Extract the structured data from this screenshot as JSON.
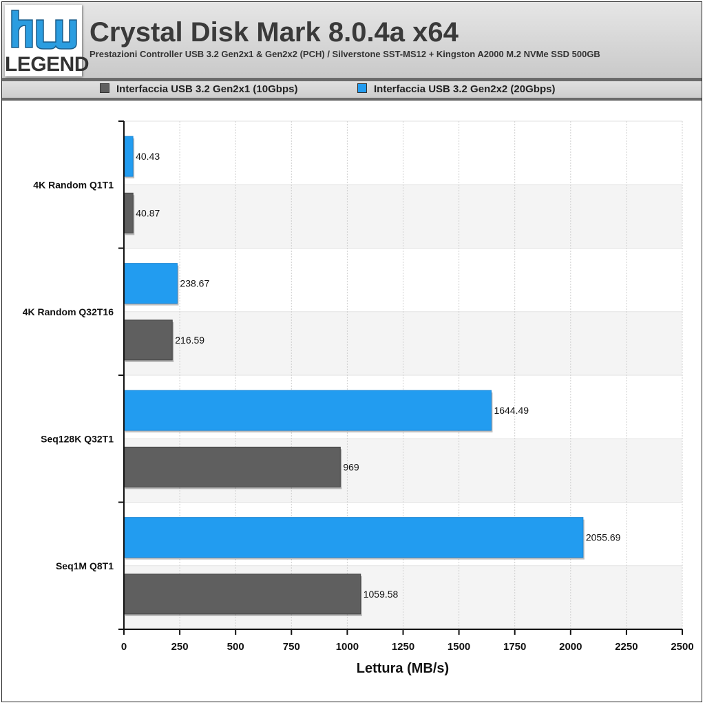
{
  "logo": {
    "text": "LEGEND"
  },
  "header": {
    "title": "Crystal Disk Mark 8.0.4a x64",
    "subtitle": "Prestazioni Controller USB 3.2 Gen2x1 & Gen2x2 (PCH) / Silverstone SST-MS12 + Kingston A2000 M.2 NVMe SSD 500GB"
  },
  "legend": {
    "items": [
      {
        "label": "Interfaccia USB 3.2 Gen2x1 (10Gbps)",
        "color": "#5f5f5f"
      },
      {
        "label": "Interfaccia USB 3.2 Gen2x2 (20Gbps)",
        "color": "#229cf0"
      }
    ]
  },
  "chart_data": {
    "type": "bar",
    "orientation": "horizontal",
    "categories": [
      "4K Random Q1T1",
      "4K Random Q32T16",
      "Seq128K Q32T1",
      "Seq1M Q8T1"
    ],
    "series": [
      {
        "name": "Interfaccia USB 3.2 Gen2x2 (20Gbps)",
        "color": "#229cf0",
        "values": [
          40.43,
          238.67,
          1644.49,
          2055.69
        ],
        "labels": [
          "40.43",
          "238.67",
          "1644.49",
          "2055.69"
        ]
      },
      {
        "name": "Interfaccia USB 3.2 Gen2x1 (10Gbps)",
        "color": "#5f5f5f",
        "values": [
          40.87,
          216.59,
          969,
          1059.58
        ],
        "labels": [
          "40.87",
          "216.59",
          "969",
          "1059.58"
        ]
      }
    ],
    "xlabel": "Lettura (MB/s)",
    "ylabel": "",
    "xlim": [
      0,
      2500
    ],
    "xticks": [
      0,
      250,
      500,
      750,
      1000,
      1250,
      1500,
      1750,
      2000,
      2250,
      2500
    ],
    "grid": true,
    "legend_position": "top"
  }
}
